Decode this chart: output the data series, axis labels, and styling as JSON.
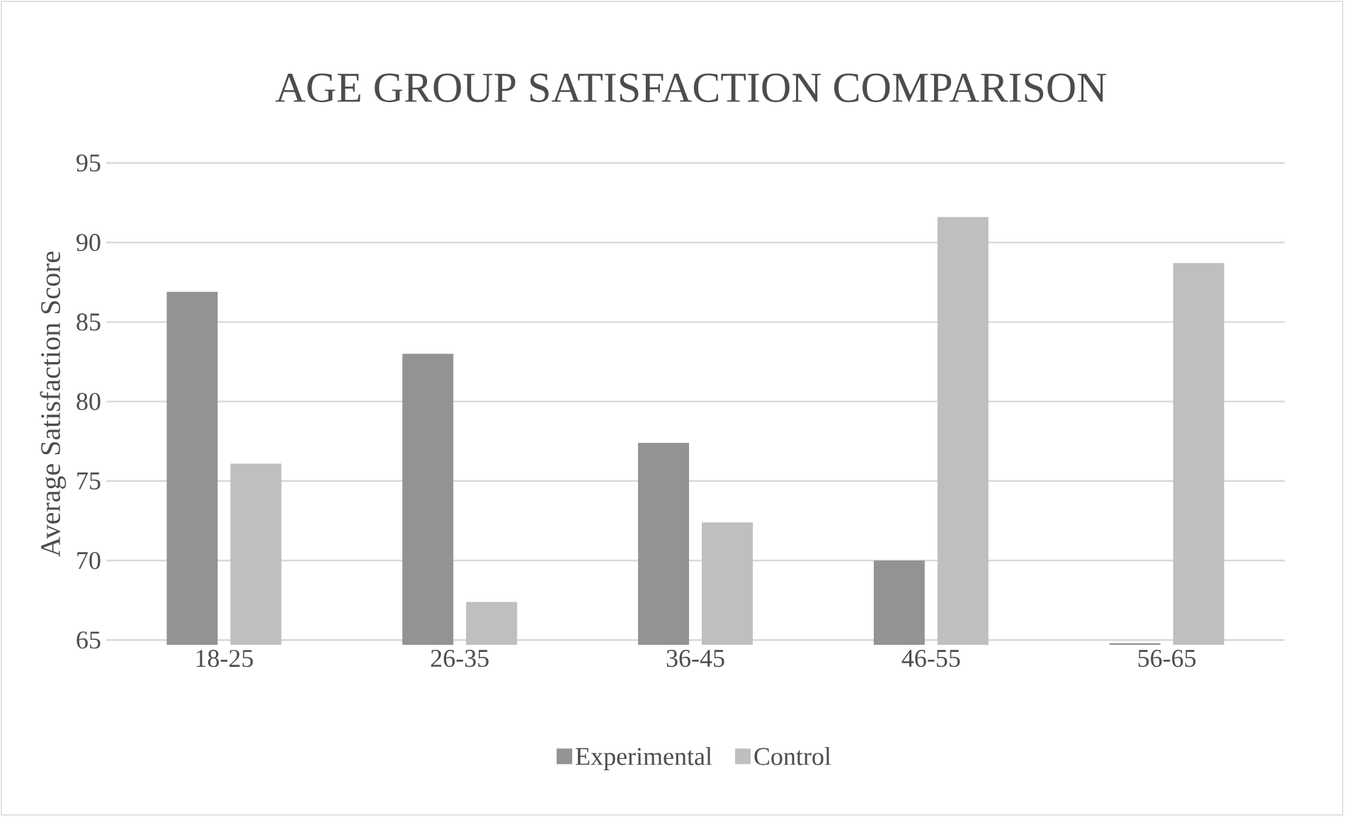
{
  "chart_data": {
    "type": "bar",
    "title": "AGE GROUP SATISFACTION COMPARISON",
    "ylabel": "Average Satisfaction Score",
    "categories": [
      "18-25",
      "26-35",
      "36-45",
      "46-55",
      "56-65"
    ],
    "series": [
      {
        "name": "Experimental",
        "color": "#939393",
        "values": [
          86.9,
          83.0,
          77.4,
          70.0,
          64.8
        ]
      },
      {
        "name": "Control",
        "color": "#bfbfbf",
        "values": [
          76.1,
          67.4,
          72.4,
          91.6,
          88.7
        ]
      }
    ],
    "ylim": [
      64.7,
      95
    ],
    "yticks": [
      65,
      70,
      75,
      80,
      85,
      90,
      95
    ],
    "grid": "y",
    "legend": "bottom"
  }
}
